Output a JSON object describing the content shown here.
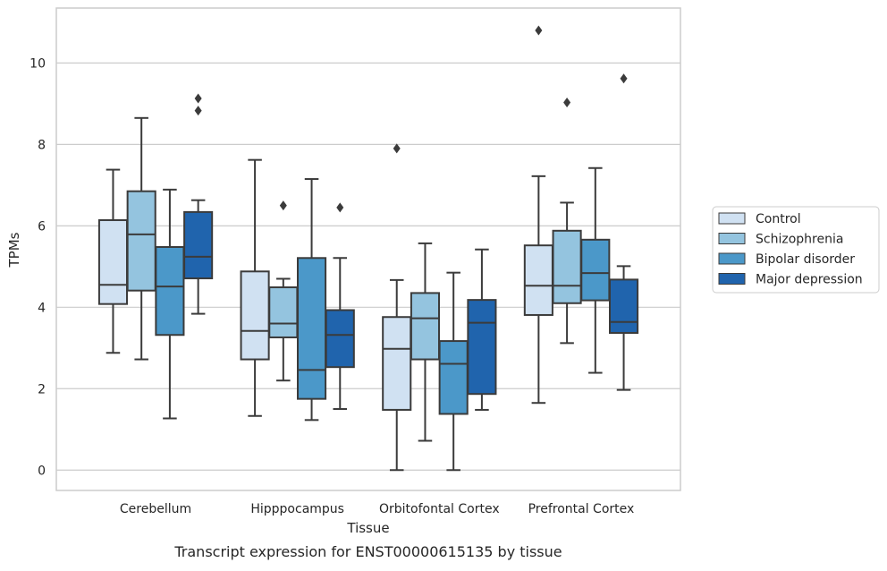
{
  "chart_data": {
    "type": "boxplot",
    "title": "Transcript expression for ENST00000615135 by tissue",
    "xlabel": "Tissue",
    "ylabel": "TPMs",
    "ylim": [
      -0.5,
      11.35
    ],
    "yticks": [
      0,
      2,
      4,
      6,
      8,
      10
    ],
    "grid": true,
    "legend_position": "right",
    "categories": [
      "Cerebellum",
      "Hipppocampus",
      "Orbitofontal Cortex",
      "Prefrontal Cortex"
    ],
    "series": [
      {
        "name": "Control",
        "color": "#d0e1f2",
        "boxes": [
          {
            "whislo": 2.88,
            "q1": 4.08,
            "med": 4.55,
            "q3": 6.14,
            "whishi": 7.38,
            "fliers": []
          },
          {
            "whislo": 1.33,
            "q1": 2.72,
            "med": 3.42,
            "q3": 4.88,
            "whishi": 7.62,
            "fliers": []
          },
          {
            "whislo": 0.0,
            "q1": 1.48,
            "med": 2.98,
            "q3": 3.76,
            "whishi": 4.67,
            "fliers": [
              7.9
            ]
          },
          {
            "whislo": 1.65,
            "q1": 3.81,
            "med": 4.53,
            "q3": 5.52,
            "whishi": 7.22,
            "fliers": [
              10.8
            ]
          }
        ]
      },
      {
        "name": "Schizophrenia",
        "color": "#94c4df",
        "boxes": [
          {
            "whislo": 2.72,
            "q1": 4.41,
            "med": 5.79,
            "q3": 6.85,
            "whishi": 8.65,
            "fliers": []
          },
          {
            "whislo": 2.2,
            "q1": 3.26,
            "med": 3.6,
            "q3": 4.49,
            "whishi": 4.7,
            "fliers": [
              6.5
            ]
          },
          {
            "whislo": 0.72,
            "q1": 2.72,
            "med": 3.73,
            "q3": 4.35,
            "whishi": 5.57,
            "fliers": []
          },
          {
            "whislo": 3.12,
            "q1": 4.1,
            "med": 4.53,
            "q3": 5.88,
            "whishi": 6.57,
            "fliers": [
              9.03
            ]
          }
        ]
      },
      {
        "name": "Bipolar disorder",
        "color": "#4b98c9",
        "boxes": [
          {
            "whislo": 1.27,
            "q1": 3.32,
            "med": 4.51,
            "q3": 5.48,
            "whishi": 6.89,
            "fliers": []
          },
          {
            "whislo": 1.23,
            "q1": 1.75,
            "med": 2.46,
            "q3": 5.21,
            "whishi": 7.15,
            "fliers": []
          },
          {
            "whislo": 0.0,
            "q1": 1.38,
            "med": 2.61,
            "q3": 3.17,
            "whishi": 4.85,
            "fliers": []
          },
          {
            "whislo": 2.39,
            "q1": 4.17,
            "med": 4.84,
            "q3": 5.66,
            "whishi": 7.42,
            "fliers": []
          }
        ]
      },
      {
        "name": "Major depression",
        "color": "#2064ad",
        "boxes": [
          {
            "whislo": 3.84,
            "q1": 4.71,
            "med": 5.24,
            "q3": 6.34,
            "whishi": 6.63,
            "fliers": [
              8.83,
              9.13
            ]
          },
          {
            "whislo": 1.5,
            "q1": 2.53,
            "med": 3.32,
            "q3": 3.93,
            "whishi": 5.21,
            "fliers": [
              6.45
            ]
          },
          {
            "whislo": 1.48,
            "q1": 1.87,
            "med": 3.62,
            "q3": 4.18,
            "whishi": 5.42,
            "fliers": []
          },
          {
            "whislo": 1.97,
            "q1": 3.37,
            "med": 3.64,
            "q3": 4.68,
            "whishi": 5.01,
            "fliers": [
              9.62
            ]
          }
        ]
      }
    ]
  }
}
